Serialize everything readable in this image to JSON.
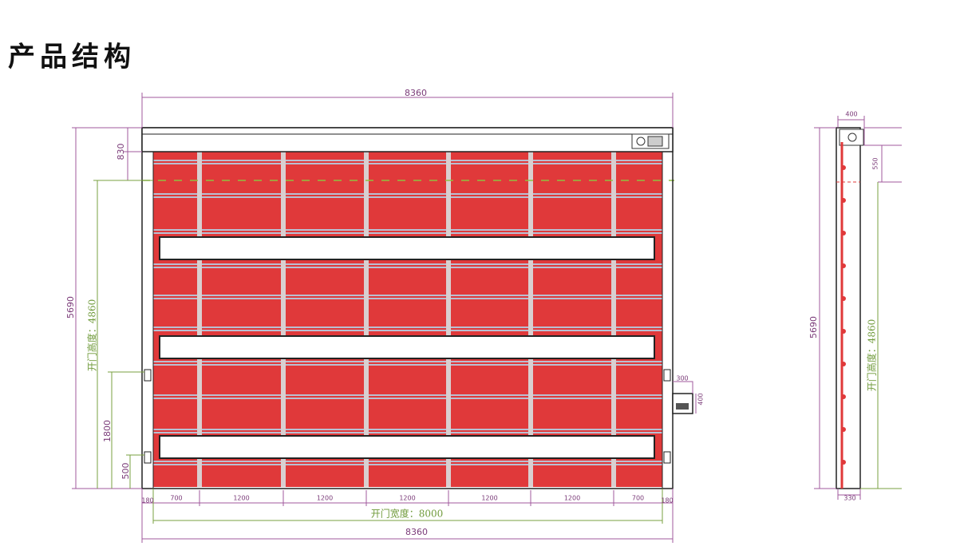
{
  "title": "产品结构",
  "front_view": {
    "overall_width_top": 8360,
    "head_height": 830,
    "overall_height": 5690,
    "opening_height": "开门高度：4860",
    "lower_height_1": 1800,
    "lower_height_2": 500,
    "side_left": 180,
    "panel_widths": [
      700,
      1200,
      1200,
      1200,
      1200,
      1200,
      700
    ],
    "side_right": 180,
    "opening_width": "开门宽度：8000",
    "overall_width_bottom": 8360,
    "control_box_width": 300,
    "control_box_height": 400
  },
  "side_view": {
    "depth_top": 400,
    "head_height": 550,
    "overall_height": 5690,
    "opening_height": "开门高度：4860",
    "depth_bottom": 330
  }
}
